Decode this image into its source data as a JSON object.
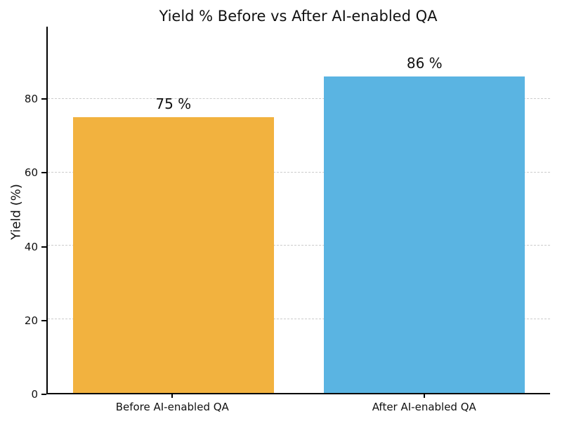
{
  "chart_data": {
    "type": "bar",
    "title": "Yield % Before vs After AI-enabled QA",
    "categories": [
      "Before AI-enabled QA",
      "After AI-enabled QA"
    ],
    "values": [
      75,
      86
    ],
    "value_labels": [
      "75 %",
      "86 %"
    ],
    "bar_colors": [
      "#F2B23F",
      "#5AB4E2"
    ],
    "xlabel": "",
    "ylabel": "Yield (%)",
    "ylim": [
      0,
      99.6
    ],
    "yticks": [
      0,
      20,
      40,
      60,
      80
    ],
    "grid": "horizontal dashed",
    "grid_color": "#cccccc",
    "axis_color": "#000000",
    "background_color": "#ffffff",
    "legend": "none"
  }
}
